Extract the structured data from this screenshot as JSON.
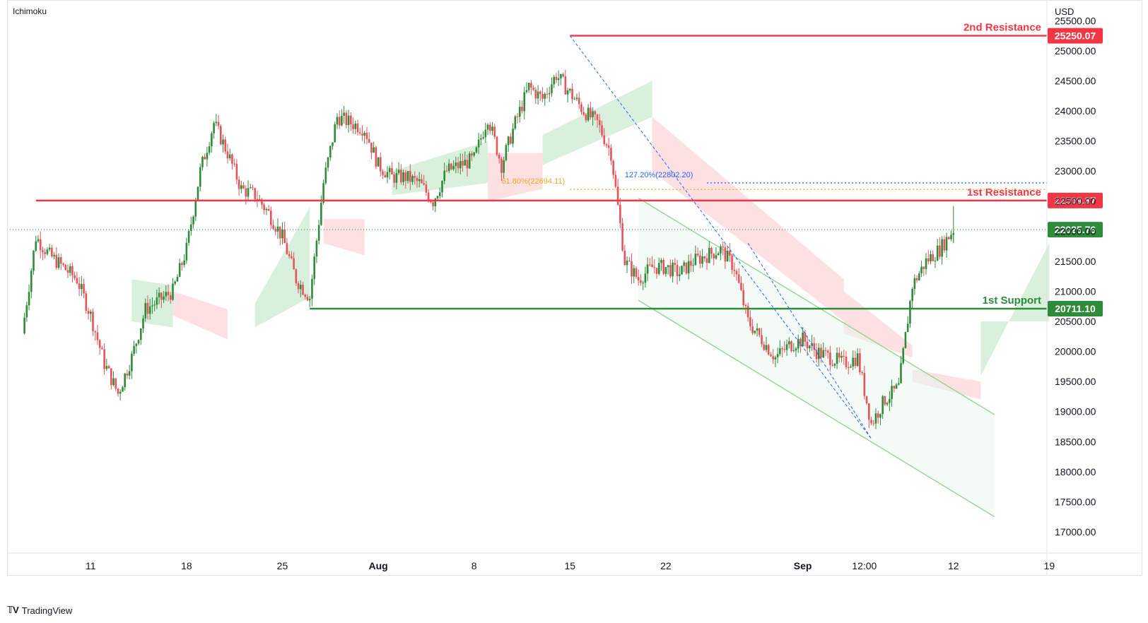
{
  "header": {
    "indicator": "Ichimoku",
    "currency": "USD"
  },
  "footer": {
    "brand": "TradingView",
    "logo_icon": "tradingview-logo-icon"
  },
  "colors": {
    "up": "#2e8b3a",
    "down": "#e8525a",
    "resistance": "#f23645",
    "support": "#2e8b3a",
    "fib_orange": "#f5a623",
    "fib_blue": "#2962ff",
    "channel": "#8fd18f",
    "cloud_green": "#c9e9cf",
    "cloud_red": "#fbd3d5",
    "price_tag": "#2e8b3a"
  },
  "chart_data": {
    "type": "candlestick",
    "ylim": [
      16800,
      25750
    ],
    "y_ticks": [
      "25500.00",
      "25000.00",
      "24500.00",
      "24000.00",
      "23500.00",
      "23000.00",
      "22500.00",
      "22000.00",
      "21500.00",
      "21000.00",
      "20500.00",
      "20000.00",
      "19500.00",
      "19000.00",
      "18500.00",
      "18000.00",
      "17500.00",
      "17000.00"
    ],
    "x_ticks": [
      "11",
      "18",
      "25",
      "Aug",
      "8",
      "15",
      "22",
      "Sep",
      "12:00",
      "12",
      "19"
    ],
    "levels": [
      {
        "name": "2nd Resistance",
        "value": 25250.07,
        "label": "25250.07",
        "kind": "resistance"
      },
      {
        "name": "1st Resistance",
        "value": 22509.87,
        "label": "22509.87",
        "kind": "resistance"
      },
      {
        "name": "1st Support",
        "value": 20711.1,
        "label": "20711.10",
        "kind": "support"
      }
    ],
    "current_price": {
      "value": 22025.76,
      "label": "22025.76"
    },
    "fib_levels": [
      {
        "label": "61.80%(22694.11)",
        "value": 22694.11,
        "color": "orange"
      },
      {
        "label": "127.20%(22802.20)",
        "value": 22802.2,
        "color": "blue"
      }
    ],
    "path_points": [
      [
        "Jul 06",
        20300
      ],
      [
        "Jul 07",
        21900
      ],
      [
        "Jul 08",
        21600
      ],
      [
        "Jul 10",
        21200
      ],
      [
        "Jul 11",
        20600
      ],
      [
        "Jul 12",
        19800
      ],
      [
        "Jul 13",
        19300
      ],
      [
        "Jul 14",
        19900
      ],
      [
        "Jul 15",
        20700
      ],
      [
        "Jul 17",
        21000
      ],
      [
        "Jul 18",
        21700
      ],
      [
        "Jul 19",
        23000
      ],
      [
        "Jul 20",
        23800
      ],
      [
        "Jul 21",
        23300
      ],
      [
        "Jul 22",
        22700
      ],
      [
        "Jul 23",
        22600
      ],
      [
        "Jul 24",
        22300
      ],
      [
        "Jul 25",
        21900
      ],
      [
        "Jul 26",
        21200
      ],
      [
        "Jul 27",
        20900
      ],
      [
        "Jul 28",
        22800
      ],
      [
        "Jul 29",
        23900
      ],
      [
        "Jul 30",
        23800
      ],
      [
        "Jul 31",
        23700
      ],
      [
        "Aug 01",
        23100
      ],
      [
        "Aug 02",
        22900
      ],
      [
        "Aug 03",
        22900
      ],
      [
        "Aug 04",
        22800
      ],
      [
        "Aug 05",
        22500
      ],
      [
        "Aug 06",
        23000
      ],
      [
        "Aug 07",
        23100
      ],
      [
        "Aug 08",
        23200
      ],
      [
        "Aug 09",
        23900
      ],
      [
        "Aug 10",
        23100
      ],
      [
        "Aug 11",
        23800
      ],
      [
        "Aug 12",
        24400
      ],
      [
        "Aug 13",
        24200
      ],
      [
        "Aug 14",
        24600
      ],
      [
        "Aug 15",
        24300
      ],
      [
        "Aug 16",
        24000
      ],
      [
        "Aug 17",
        23800
      ],
      [
        "Aug 18",
        23300
      ],
      [
        "Aug 19",
        21500
      ],
      [
        "Aug 20",
        21200
      ],
      [
        "Aug 21",
        21400
      ],
      [
        "Aug 22",
        21400
      ],
      [
        "Aug 23",
        21300
      ],
      [
        "Aug 24",
        21500
      ],
      [
        "Aug 25",
        21600
      ],
      [
        "Aug 26",
        21700
      ],
      [
        "Aug 27",
        21400
      ],
      [
        "Aug 28",
        20500
      ],
      [
        "Aug 29",
        20200
      ],
      [
        "Aug 30",
        19900
      ],
      [
        "Aug 31",
        20100
      ],
      [
        "Sep 01",
        20200
      ],
      [
        "Sep 02",
        20000
      ],
      [
        "Sep 03",
        19900
      ],
      [
        "Sep 04",
        19800
      ],
      [
        "Sep 05",
        19900
      ],
      [
        "Sep 06",
        18800
      ],
      [
        "Sep 07",
        19200
      ],
      [
        "Sep 08",
        19400
      ],
      [
        "Sep 09",
        21100
      ],
      [
        "Sep 10",
        21500
      ],
      [
        "Sep 11",
        21700
      ],
      [
        "Sep 12",
        22025.76
      ]
    ],
    "descending_channel": {
      "upper": [
        [
          "Aug 20",
          22550
        ],
        [
          "Sep 15",
          18950
        ]
      ],
      "lower": [
        [
          "Aug 20",
          20850
        ],
        [
          "Sep 15",
          17250
        ]
      ]
    },
    "fib_trendline": [
      [
        "Aug 15",
        25250.07
      ],
      [
        "Sep 06",
        18550
      ]
    ]
  }
}
